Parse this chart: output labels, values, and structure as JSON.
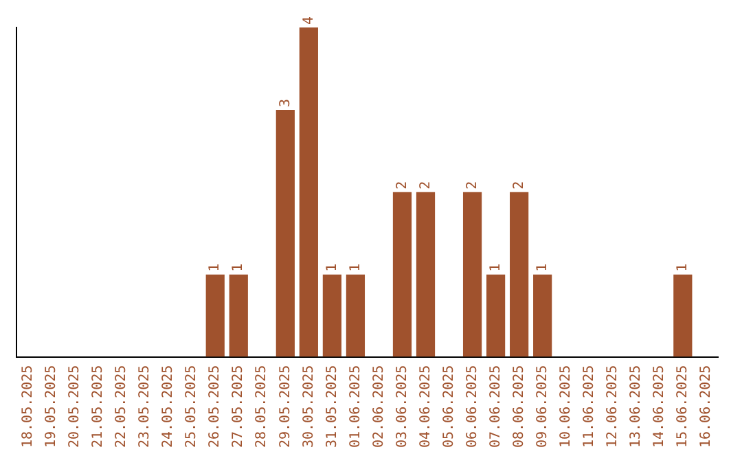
{
  "chart_data": {
    "type": "bar",
    "categories": [
      "18.05.2025",
      "19.05.2025",
      "20.05.2025",
      "21.05.2025",
      "22.05.2025",
      "23.05.2025",
      "24.05.2025",
      "25.05.2025",
      "26.05.2025",
      "27.05.2025",
      "28.05.2025",
      "29.05.2025",
      "30.05.2025",
      "31.05.2025",
      "01.06.2025",
      "02.06.2025",
      "03.06.2025",
      "04.06.2025",
      "05.06.2025",
      "06.06.2025",
      "07.06.2025",
      "08.06.2025",
      "09.06.2025",
      "10.06.2025",
      "11.06.2025",
      "12.06.2025",
      "13.06.2025",
      "14.06.2025",
      "15.06.2025",
      "16.06.2025"
    ],
    "values": [
      0,
      0,
      0,
      0,
      0,
      0,
      0,
      0,
      1,
      1,
      0,
      3,
      4,
      1,
      1,
      0,
      2,
      2,
      0,
      2,
      1,
      2,
      1,
      0,
      0,
      0,
      0,
      0,
      1,
      0
    ],
    "value_labels": [
      null,
      null,
      null,
      null,
      null,
      null,
      null,
      null,
      "1",
      "1",
      null,
      "3",
      "4",
      "1",
      "1",
      null,
      "2",
      "2",
      null,
      "2",
      "1",
      "2",
      "1",
      null,
      null,
      null,
      null,
      null,
      "1",
      null
    ],
    "color": "#a0522d",
    "tick_labels": "x",
    "grid": false,
    "legend": false
  }
}
